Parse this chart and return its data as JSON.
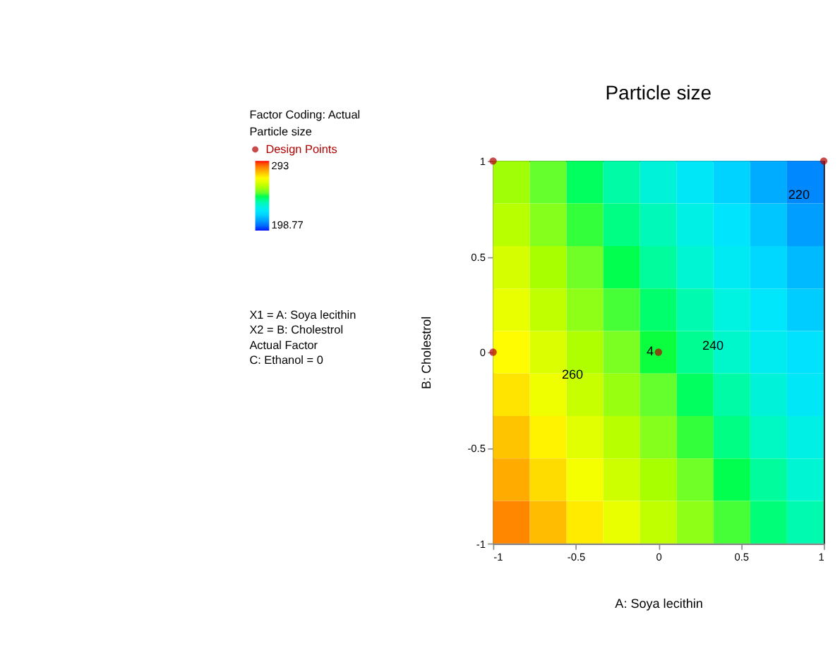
{
  "chart_data": {
    "type": "heatmap",
    "title": "Particle size",
    "xlabel": "A: Soya lecithin",
    "ylabel": "B: Cholestrol",
    "legend_title": "Particle size",
    "xlim": [
      -1,
      1
    ],
    "xticks": [
      {
        "value": -1,
        "label": "-1"
      },
      -0.5,
      {
        "value": 0,
        "label": "0"
      },
      0.5,
      {
        "value": 1,
        "label": "1"
      }
    ],
    "ylim": [
      -1,
      1
    ],
    "yticks": [
      {
        "value": -1,
        "label": "-1"
      },
      -0.5,
      {
        "value": 0,
        "label": "0"
      },
      0.5,
      {
        "value": 1,
        "label": "1"
      }
    ],
    "clim": [
      198.77,
      293
    ],
    "cticks": [
      198.77,
      293
    ],
    "legend": "top left",
    "grid": false,
    "cells": [
      [
        256,
        250,
        244,
        238,
        232,
        226,
        220,
        214,
        209
      ],
      [
        259,
        253,
        247,
        241,
        236,
        230,
        224,
        218,
        212
      ],
      [
        263,
        257,
        251,
        245,
        239,
        233,
        227,
        221,
        216
      ],
      [
        266,
        260,
        254,
        248,
        243,
        237,
        231,
        225,
        219
      ],
      [
        270,
        264,
        258,
        252,
        246,
        240,
        234,
        228,
        223
      ],
      [
        273,
        267,
        261,
        255,
        250,
        244,
        238,
        232,
        226
      ],
      [
        277,
        271,
        265,
        259,
        253,
        247,
        241,
        235,
        230
      ],
      [
        280,
        274,
        268,
        262,
        257,
        251,
        245,
        239,
        233
      ],
      [
        284,
        278,
        272,
        266,
        260,
        254,
        248,
        242,
        237
      ]
    ],
    "series": [
      {
        "type": "scatter",
        "name": "Design Points",
        "color": "#b00000",
        "x": [
          -1,
          1,
          -1,
          0
        ],
        "values": [
          1,
          1,
          0,
          0
        ]
      }
    ],
    "annotations": [
      "Factor Coding: Actual",
      "X1 = A: Soya lecithin",
      "X2 = B: Cholestrol",
      "Actual Factor",
      "C: Ethanol = 0",
      "220",
      "240",
      "260",
      {
        "text": "4",
        "x": -0.05,
        "y": 0
      }
    ]
  }
}
